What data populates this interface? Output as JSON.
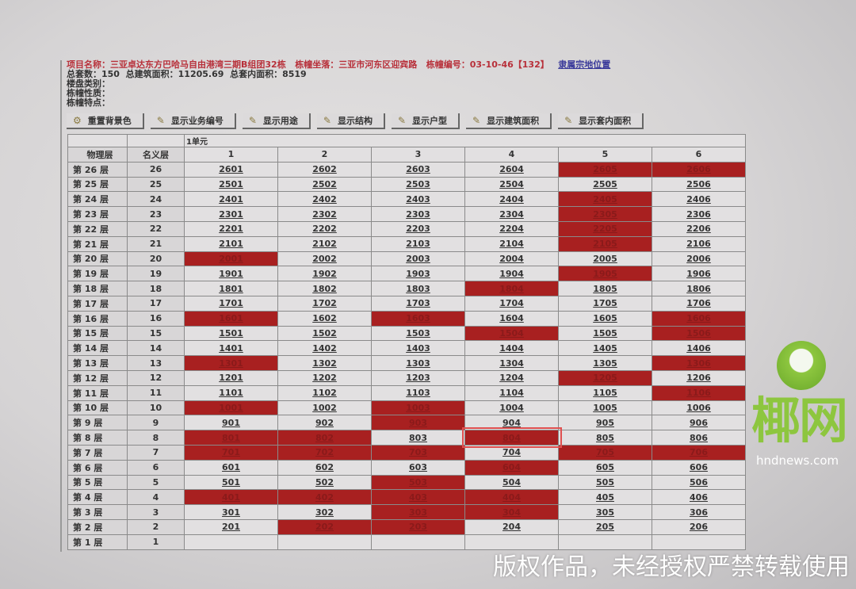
{
  "info": {
    "project_label": "项目名称：",
    "project_name": "三亚卓达东方巴哈马自由港湾三期B组团32栋",
    "location_label": "栋幢坐落：",
    "location": "三亚市河东区迎宾路",
    "building_no_label": "栋幢编号：",
    "building_no": "03-10-46【132】",
    "map_link": "隶属宗地位置",
    "total_units_label": "总套数：",
    "total_units": "150",
    "total_area_label": "总建筑面积：",
    "total_area": "11205.69",
    "inner_area_label": "总套内面积：",
    "inner_area": "8519",
    "category_label": "楼盘类别：",
    "nature_label": "栋幢性质：",
    "feature_label": "栋幢特点："
  },
  "toolbar": [
    "重置背景色",
    "显示业务编号",
    "显示用途",
    "显示结构",
    "显示户型",
    "显示建筑面积",
    "显示套内面积"
  ],
  "table": {
    "unit_label": "1单元",
    "headers": [
      "物理层",
      "名义层",
      "1",
      "2",
      "3",
      "4",
      "5",
      "6"
    ],
    "colors": {
      "sold": "#a82020",
      "available": "#e2e0e1"
    },
    "rows": [
      {
        "floor": "第 26 层",
        "nominal": "26",
        "units": [
          "2601",
          "2602",
          "2603",
          "2604",
          "2605",
          "2606"
        ],
        "sold": [
          0,
          0,
          0,
          0,
          1,
          1
        ]
      },
      {
        "floor": "第 25 层",
        "nominal": "25",
        "units": [
          "2501",
          "2502",
          "2503",
          "2504",
          "2505",
          "2506"
        ],
        "sold": [
          0,
          0,
          0,
          0,
          0,
          0
        ]
      },
      {
        "floor": "第 24 层",
        "nominal": "24",
        "units": [
          "2401",
          "2402",
          "2403",
          "2404",
          "2405",
          "2406"
        ],
        "sold": [
          0,
          0,
          0,
          0,
          1,
          0
        ]
      },
      {
        "floor": "第 23 层",
        "nominal": "23",
        "units": [
          "2301",
          "2302",
          "2303",
          "2304",
          "2305",
          "2306"
        ],
        "sold": [
          0,
          0,
          0,
          0,
          1,
          0
        ]
      },
      {
        "floor": "第 22 层",
        "nominal": "22",
        "units": [
          "2201",
          "2202",
          "2203",
          "2204",
          "2205",
          "2206"
        ],
        "sold": [
          0,
          0,
          0,
          0,
          1,
          0
        ]
      },
      {
        "floor": "第 21 层",
        "nominal": "21",
        "units": [
          "2101",
          "2102",
          "2103",
          "2104",
          "2105",
          "2106"
        ],
        "sold": [
          0,
          0,
          0,
          0,
          1,
          0
        ]
      },
      {
        "floor": "第 20 层",
        "nominal": "20",
        "units": [
          "2001",
          "2002",
          "2003",
          "2004",
          "2005",
          "2006"
        ],
        "sold": [
          1,
          0,
          0,
          0,
          0,
          0
        ]
      },
      {
        "floor": "第 19 层",
        "nominal": "19",
        "units": [
          "1901",
          "1902",
          "1903",
          "1904",
          "1905",
          "1906"
        ],
        "sold": [
          0,
          0,
          0,
          0,
          1,
          0
        ]
      },
      {
        "floor": "第 18 层",
        "nominal": "18",
        "units": [
          "1801",
          "1802",
          "1803",
          "1804",
          "1805",
          "1806"
        ],
        "sold": [
          0,
          0,
          0,
          1,
          0,
          0
        ]
      },
      {
        "floor": "第 17 层",
        "nominal": "17",
        "units": [
          "1701",
          "1702",
          "1703",
          "1704",
          "1705",
          "1706"
        ],
        "sold": [
          0,
          0,
          0,
          0,
          0,
          0
        ]
      },
      {
        "floor": "第 16 层",
        "nominal": "16",
        "units": [
          "1601",
          "1602",
          "1603",
          "1604",
          "1605",
          "1606"
        ],
        "sold": [
          1,
          0,
          1,
          0,
          0,
          1
        ]
      },
      {
        "floor": "第 15 层",
        "nominal": "15",
        "units": [
          "1501",
          "1502",
          "1503",
          "1504",
          "1505",
          "1506"
        ],
        "sold": [
          0,
          0,
          0,
          1,
          0,
          1
        ]
      },
      {
        "floor": "第 14 层",
        "nominal": "14",
        "units": [
          "1401",
          "1402",
          "1403",
          "1404",
          "1405",
          "1406"
        ],
        "sold": [
          0,
          0,
          0,
          0,
          0,
          0
        ]
      },
      {
        "floor": "第 13 层",
        "nominal": "13",
        "units": [
          "1301",
          "1302",
          "1303",
          "1304",
          "1305",
          "1306"
        ],
        "sold": [
          1,
          0,
          0,
          0,
          0,
          1
        ]
      },
      {
        "floor": "第 12 层",
        "nominal": "12",
        "units": [
          "1201",
          "1202",
          "1203",
          "1204",
          "1205",
          "1206"
        ],
        "sold": [
          0,
          0,
          0,
          0,
          1,
          0
        ]
      },
      {
        "floor": "第 11 层",
        "nominal": "11",
        "units": [
          "1101",
          "1102",
          "1103",
          "1104",
          "1105",
          "1106"
        ],
        "sold": [
          0,
          0,
          0,
          0,
          0,
          1
        ]
      },
      {
        "floor": "第 10 层",
        "nominal": "10",
        "units": [
          "1001",
          "1002",
          "1003",
          "1004",
          "1005",
          "1006"
        ],
        "sold": [
          1,
          0,
          1,
          0,
          0,
          0
        ]
      },
      {
        "floor": "第 9 层",
        "nominal": "9",
        "units": [
          "901",
          "902",
          "903",
          "904",
          "905",
          "906"
        ],
        "sold": [
          0,
          0,
          1,
          0,
          0,
          0
        ]
      },
      {
        "floor": "第 8 层",
        "nominal": "8",
        "units": [
          "801",
          "802",
          "803",
          "804",
          "805",
          "806"
        ],
        "sold": [
          1,
          1,
          0,
          1,
          0,
          0
        ],
        "highlighted": "804"
      },
      {
        "floor": "第 7 层",
        "nominal": "7",
        "units": [
          "701",
          "702",
          "703",
          "704",
          "705",
          "706"
        ],
        "sold": [
          1,
          1,
          1,
          0,
          1,
          1
        ]
      },
      {
        "floor": "第 6 层",
        "nominal": "6",
        "units": [
          "601",
          "602",
          "603",
          "604",
          "605",
          "606"
        ],
        "sold": [
          0,
          0,
          0,
          1,
          0,
          0
        ]
      },
      {
        "floor": "第 5 层",
        "nominal": "5",
        "units": [
          "501",
          "502",
          "503",
          "504",
          "505",
          "506"
        ],
        "sold": [
          0,
          0,
          1,
          0,
          0,
          0
        ]
      },
      {
        "floor": "第 4 层",
        "nominal": "4",
        "units": [
          "401",
          "402",
          "403",
          "404",
          "405",
          "406"
        ],
        "sold": [
          1,
          1,
          1,
          1,
          0,
          0
        ]
      },
      {
        "floor": "第 3 层",
        "nominal": "3",
        "units": [
          "301",
          "302",
          "303",
          "304",
          "305",
          "306"
        ],
        "sold": [
          0,
          0,
          1,
          1,
          0,
          0
        ]
      },
      {
        "floor": "第 2 层",
        "nominal": "2",
        "units": [
          "201",
          "202",
          "203",
          "204",
          "205",
          "206"
        ],
        "sold": [
          0,
          1,
          1,
          0,
          0,
          0
        ]
      },
      {
        "floor": "第 1 层",
        "nominal": "1",
        "units": [
          "",
          "",
          "",
          "",
          "",
          ""
        ],
        "sold": [
          0,
          0,
          0,
          0,
          0,
          0
        ]
      }
    ]
  },
  "watermark": {
    "logo_text": "椰网",
    "logo_url": "hndnews.com",
    "notice": "版权作品，未经授权严禁转载使用"
  }
}
